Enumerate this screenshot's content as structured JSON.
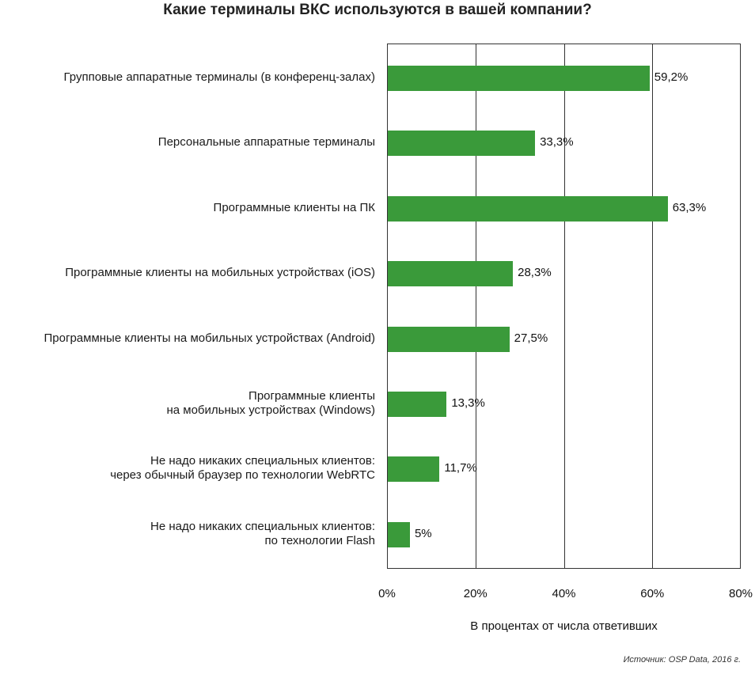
{
  "chart_data": {
    "type": "bar",
    "orientation": "horizontal",
    "title": "Какие терминалы ВКС используются в вашей компании?",
    "xlabel": "В процентах от числа ответивших",
    "xlim": [
      0,
      80
    ],
    "ticks": [
      "0%",
      "20%",
      "40%",
      "60%",
      "80%"
    ],
    "grid": true,
    "categories": [
      [
        "Групповые аппаратные терминалы (в конференц-залах)"
      ],
      [
        "Персональные аппаратные терминалы"
      ],
      [
        "Программные клиенты на ПК"
      ],
      [
        "Программные клиенты на мобильных устройствах (iOS)"
      ],
      [
        "Программные клиенты на мобильных устройствах (Android)"
      ],
      [
        "Программные клиенты",
        "на мобильных устройствах (Windows)"
      ],
      [
        "Не надо никаких специальных клиентов:",
        "через обычный браузер по технологии WebRTC"
      ],
      [
        "Не надо никаких специальных клиентов:",
        "по технологии Flash"
      ]
    ],
    "values": [
      59.2,
      33.3,
      63.3,
      28.3,
      27.5,
      13.3,
      11.7,
      5
    ],
    "value_labels": [
      "59,2%",
      "33,3%",
      "63,3%",
      "28,3%",
      "27,5%",
      "13,3%",
      "11,7%",
      "5%"
    ],
    "bar_color": "#3a9a3a",
    "source": "Источник: OSP Data, 2016 г."
  }
}
